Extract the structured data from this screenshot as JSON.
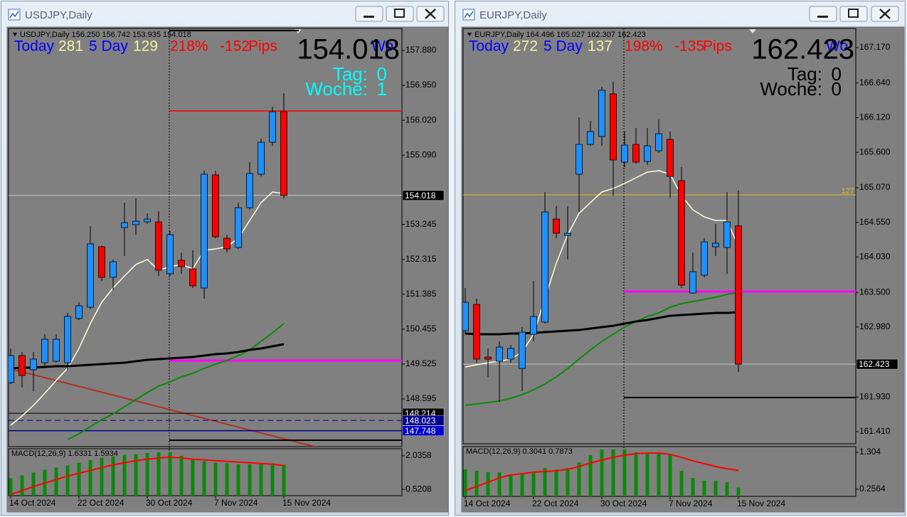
{
  "windows": [
    {
      "title": "USDJPY,Daily",
      "info": "USDJPY,Daily  156.250 156.742 153.935 154.018",
      "stats": {
        "today_label": "Today",
        "today": "281",
        "five_day_label": "5 Day",
        "five_day": "129",
        "percent": "218%",
        "pips": "-152",
        "pips_label": "Pips",
        "corner": "Wo:"
      },
      "price": "154.018",
      "tag_label": "Tag:",
      "tag": "0",
      "woche_label": "Woche:",
      "woche": "1",
      "counter_color": "#00ffff",
      "chart_data": {
        "type": "candlestick",
        "categories": [
          "14 Oct 2024",
          null,
          null,
          null,
          null,
          null,
          "22 Oct 2024",
          null,
          null,
          null,
          null,
          null,
          "30 Oct 2024",
          null,
          null,
          null,
          null,
          null,
          "7 Nov 2024",
          null,
          null,
          null,
          null,
          null,
          "15 Nov 2024"
        ],
        "open": [
          149.03,
          149.75,
          149.371,
          149.561,
          149.599,
          149.561,
          150.736,
          151.039,
          152.65,
          151.835,
          153.161,
          153.237,
          153.313,
          153.313,
          151.93,
          152.29,
          152.062,
          151.551,
          154.564,
          152.877,
          152.631,
          153.692,
          154.583,
          155.435,
          156.25
        ],
        "high": [
          149.94,
          149.845,
          149.845,
          150.319,
          150.319,
          150.887,
          151.172,
          153.199,
          152.688,
          152.309,
          153.825,
          153.935,
          153.54,
          153.597,
          153.067,
          152.498,
          152.555,
          154.677,
          154.677,
          152.972,
          153.825,
          154.905,
          155.53,
          156.383,
          156.742
        ],
        "low": [
          148.992,
          148.898,
          148.803,
          149.466,
          149.561,
          149.371,
          150.698,
          150.982,
          151.74,
          151.494,
          152.403,
          152.972,
          153.256,
          151.873,
          151.873,
          151.93,
          151.551,
          151.266,
          152.877,
          152.498,
          152.593,
          153.635,
          154.526,
          155.341,
          153.935
        ],
        "close": [
          149.75,
          149.22,
          149.656,
          150.186,
          150.186,
          150.793,
          151.077,
          152.726,
          151.835,
          152.252,
          153.294,
          153.332,
          153.389,
          152.024,
          152.972,
          152.119,
          151.608,
          154.583,
          152.915,
          152.593,
          153.692,
          154.602,
          155.435,
          156.25,
          154.018
        ],
        "up_color": "#1e90ff",
        "down_color": "#ff0000",
        "ylim": [
          147.325,
          158.467
        ],
        "yticks": [
          {
            "value": 157.88,
            "label": "157.880"
          },
          {
            "value": 156.95,
            "label": "156.950"
          },
          {
            "value": 156.02,
            "label": "156.020"
          },
          {
            "value": 155.09,
            "label": "155.090"
          },
          153.245,
          152.315,
          151.385,
          150.455,
          149.525,
          148.595
        ],
        "ma": [
          {
            "color": "#fffde0",
            "width": 1.5,
            "values": [
              147.893,
              148.14,
              148.424,
              148.746,
              149.087,
              149.409,
              149.94,
              150.603,
              151.172,
              151.551,
              151.873,
              152.176,
              152.309,
              152.024,
              152.119,
              152.176,
              152.062,
              152.555,
              152.593,
              152.65,
              152.877,
              153.351,
              153.825,
              154.109,
              154.071
            ]
          },
          {
            "color": "#0a8a0a",
            "width": 2,
            "values": [
              null,
              null,
              null,
              null,
              null,
              147.514,
              147.666,
              147.855,
              148.045,
              148.197,
              148.386,
              148.576,
              148.765,
              148.936,
              149.049,
              149.182,
              149.277,
              149.409,
              149.523,
              149.618,
              149.75,
              149.902,
              150.129,
              150.357,
              150.603
            ]
          },
          {
            "color": "#000000",
            "width": 3,
            "values": [
              149.409,
              149.428,
              149.428,
              149.447,
              149.466,
              149.466,
              149.485,
              149.504,
              149.523,
              149.542,
              149.561,
              149.599,
              149.637,
              149.656,
              149.675,
              149.694,
              149.712,
              149.75,
              149.788,
              149.807,
              149.845,
              149.902,
              149.94,
              149.997,
              150.054
            ]
          }
        ],
        "hlines": [
          {
            "value": 154.018,
            "color": "#c8c8c8",
            "width": 1,
            "tag_color": "#000000"
          },
          {
            "value": 156.27,
            "color": "#ff0000",
            "width": 1.5
          },
          {
            "value": 149.618,
            "color": "#ff00ff",
            "width": 3
          },
          {
            "value": 148.214,
            "color": "#000000",
            "width": 1,
            "tag_color": "#000000"
          },
          {
            "value": 148.023,
            "color": "#00008b",
            "width": 1,
            "dash": true,
            "tag_color": "#00008b"
          },
          {
            "value": 147.748,
            "color": "#00008b",
            "width": 1.5,
            "tag_color": "#0000cd"
          },
          {
            "value": 147.495,
            "color": "#000000",
            "width": 2
          }
        ],
        "macd": {
          "label": "MACD(12,26,9) 1.6331 1.5934",
          "ylim": [
            0.237,
            2.352
          ],
          "yticks": [
            2.0358,
            0.5208
          ],
          "hist_color": "#0a8a0a",
          "signal_color": "#ff0000",
          "histogram": [
            1.026,
            1.152,
            1.278,
            1.405,
            1.499,
            1.594,
            1.72,
            1.847,
            1.941,
            2.004,
            2.068,
            2.099,
            2.162,
            2.194,
            2.194,
            2.036,
            1.878,
            1.783,
            1.72,
            1.689,
            1.657,
            1.657,
            1.657,
            1.689,
            1.6331
          ],
          "signal": [
            0.3,
            0.458,
            0.647,
            0.805,
            0.963,
            1.121,
            1.247,
            1.373,
            1.499,
            1.626,
            1.72,
            1.815,
            1.878,
            1.941,
            1.973,
            1.941,
            1.878,
            1.847,
            1.815,
            1.783,
            1.752,
            1.72,
            1.689,
            1.657,
            1.5934
          ]
        }
      }
    },
    {
      "title": "EURJPY,Daily",
      "info": "EURJPY,Daily  164.496 165.027 162.307 162.423",
      "stats": {
        "today_label": "Today",
        "today": "272",
        "five_day_label": "5 Day",
        "five_day": "137",
        "percent": "198%",
        "pips": "-135",
        "pips_label": "Pips",
        "corner": "Wo:"
      },
      "price": "162.423",
      "tag_label": "Tag:",
      "tag": "0",
      "woche_label": "Woche:",
      "woche": "0",
      "counter_color": "#000000",
      "chart_data": {
        "type": "candlestick",
        "categories": [
          "14 Oct 2024",
          null,
          null,
          null,
          null,
          null,
          "22 Oct 2024",
          null,
          null,
          null,
          null,
          null,
          "30 Oct 2024",
          null,
          null,
          null,
          null,
          null,
          "7 Nov 2024",
          null,
          null,
          null,
          null,
          null,
          "15 Nov 2024"
        ],
        "open": [
          162.925,
          163.319,
          162.53,
          162.466,
          162.498,
          162.359,
          162.871,
          163.053,
          164.599,
          164.354,
          165.271,
          165.719,
          165.837,
          166.477,
          165.453,
          165.719,
          165.463,
          165.623,
          165.794,
          165.175,
          163.49,
          163.757,
          164.183,
          164.173,
          164.496
        ],
        "high": [
          163.565,
          163.405,
          162.658,
          162.765,
          162.711,
          162.978,
          163.671,
          165.005,
          164.791,
          164.791,
          166.125,
          166.071,
          166.583,
          166.658,
          165.911,
          165.965,
          165.965,
          166.093,
          165.911,
          165.378,
          164.098,
          164.311,
          164.525,
          165.005,
          165.027
        ],
        "low": [
          162.871,
          162.445,
          162.231,
          161.858,
          162.445,
          162.018,
          162.765,
          163.031,
          164.311,
          163.991,
          164.706,
          165.698,
          165.698,
          164.951,
          165.378,
          165.431,
          165.41,
          165.591,
          164.919,
          163.565,
          163.479,
          163.725,
          164.045,
          163.778,
          162.307
        ],
        "close": [
          163.351,
          162.498,
          162.498,
          162.679,
          162.658,
          162.903,
          163.138,
          164.706,
          164.386,
          164.386,
          165.719,
          165.911,
          166.53,
          165.485,
          165.709,
          165.453,
          165.698,
          165.879,
          165.239,
          163.607,
          163.81,
          164.258,
          164.237,
          164.557,
          162.423
        ],
        "up_color": "#1e90ff",
        "down_color": "#ff0000",
        "ylim": [
          161.229,
          167.458
        ],
        "yticks": [
          {
            "value": 167.17,
            "label": "167.170"
          },
          {
            "value": 166.64,
            "label": "166.640"
          },
          {
            "value": 166.12,
            "label": "166.120"
          },
          {
            "value": 165.6,
            "label": "165.600"
          },
          {
            "value": 165.07,
            "label": "165.070"
          },
          {
            "value": 164.55,
            "label": "164.550"
          },
          {
            "value": 164.03,
            "label": "164.030"
          },
          {
            "value": 163.5,
            "label": "163.500"
          },
          {
            "value": 162.98,
            "label": "162.980"
          },
          {
            "value": 161.93,
            "label": "161.930"
          },
          {
            "value": 161.41,
            "label": "161.410"
          }
        ],
        "ma": [
          {
            "color": "#fffde0",
            "width": 1.5,
            "values": [
              162.381,
              162.413,
              162.445,
              162.466,
              162.498,
              162.605,
              162.871,
              163.405,
              163.938,
              164.365,
              164.685,
              164.845,
              165.005,
              165.058,
              165.133,
              165.218,
              165.303,
              165.325,
              165.271,
              164.951,
              164.738,
              164.631,
              164.578,
              164.578,
              164.183
            ]
          },
          {
            "color": "#0a8a0a",
            "width": 2,
            "values": [
              161.805,
              161.826,
              161.847,
              161.869,
              161.911,
              161.965,
              162.039,
              162.125,
              162.231,
              162.359,
              162.498,
              162.637,
              162.765,
              162.871,
              162.978,
              163.063,
              163.138,
              163.191,
              163.277,
              163.33,
              163.362,
              163.394,
              163.426,
              163.469,
              163.501
            ]
          },
          {
            "color": "#000000",
            "width": 3,
            "values": [
              162.882,
              162.871,
              162.871,
              162.871,
              162.882,
              162.882,
              162.893,
              162.903,
              162.914,
              162.925,
              162.935,
              162.957,
              162.978,
              162.999,
              163.031,
              163.063,
              163.085,
              163.117,
              163.149,
              163.159,
              163.17,
              163.181,
              163.191,
              163.191,
              163.202
            ]
          }
        ],
        "hlines": [
          {
            "value": 162.423,
            "color": "#c8c8c8",
            "width": 1,
            "tag_color": "#000000"
          },
          {
            "value": 164.962,
            "color": "#e0c020",
            "width": 1,
            "label": "127"
          },
          {
            "value": 163.511,
            "color": "#ff00ff",
            "width": 3
          },
          {
            "value": 161.922,
            "color": "#000000",
            "width": 2
          }
        ],
        "macd": {
          "label": "MACD(12,26,9) 0.3041 0.7873",
          "ylim": [
            0.054,
            1.465
          ],
          "yticks": [
            1.304,
            0.2564
          ],
          "hist_color": "#0a8a0a",
          "signal_color": "#ff0000",
          "histogram": [
            0.82,
            0.78,
            0.739,
            0.739,
            0.659,
            0.699,
            0.739,
            0.86,
            0.82,
            0.86,
            1.021,
            1.223,
            1.384,
            1.384,
            1.384,
            1.303,
            1.263,
            1.303,
            1.223,
            0.78,
            0.578,
            0.498,
            0.498,
            0.457,
            0.3041
          ],
          "signal": [
            0.216,
            0.336,
            0.457,
            0.578,
            0.659,
            0.699,
            0.739,
            0.759,
            0.78,
            0.82,
            0.9,
            1.001,
            1.082,
            1.162,
            1.223,
            1.263,
            1.283,
            1.283,
            1.243,
            1.162,
            1.062,
            0.981,
            0.9,
            0.84,
            0.7873
          ]
        }
      }
    }
  ]
}
